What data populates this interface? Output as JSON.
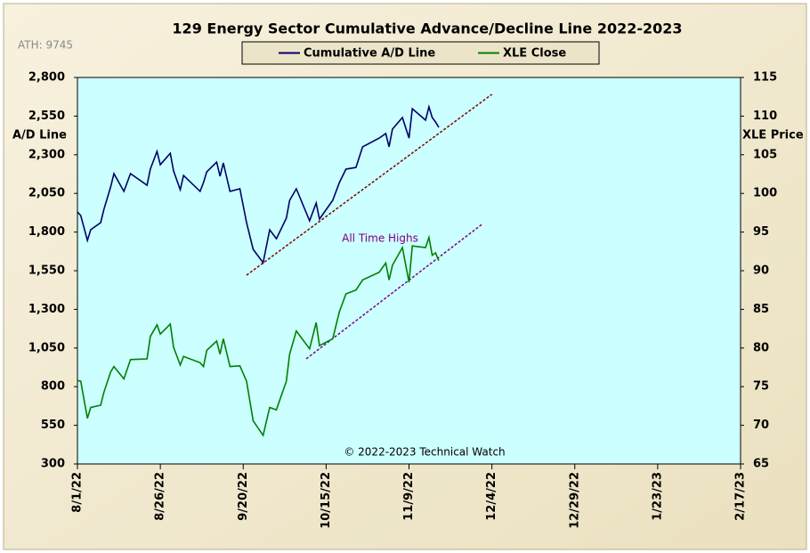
{
  "chart_data": {
    "type": "line",
    "title": "129 Energy Sector Cumulative Advance/Decline Line 2022-2023",
    "ylabel": "A/D Line",
    "y2label": "XLE Price",
    "ath_note": "ATH: 9745",
    "annotation": "All Time  Highs",
    "credit": "© 2022-2023  Technical Watch",
    "x": [
      "2022-08-01",
      "2022-08-02",
      "2022-08-04",
      "2022-08-05",
      "2022-08-08",
      "2022-08-09",
      "2022-08-11",
      "2022-08-12",
      "2022-08-15",
      "2022-08-17",
      "2022-08-22",
      "2022-08-23",
      "2022-08-25",
      "2022-08-26",
      "2022-08-29",
      "2022-08-30",
      "2022-09-01",
      "2022-09-02",
      "2022-09-07",
      "2022-09-08",
      "2022-09-09",
      "2022-09-12",
      "2022-09-13",
      "2022-09-14",
      "2022-09-16",
      "2022-09-19",
      "2022-09-21",
      "2022-09-23",
      "2022-09-26",
      "2022-09-28",
      "2022-09-30",
      "2022-10-03",
      "2022-10-04",
      "2022-10-06",
      "2022-10-10",
      "2022-10-12",
      "2022-10-13",
      "2022-10-17",
      "2022-10-19",
      "2022-10-21",
      "2022-10-24",
      "2022-10-26",
      "2022-10-31",
      "2022-11-02",
      "2022-11-03",
      "2022-11-04",
      "2022-11-07",
      "2022-11-09",
      "2022-11-10",
      "2022-11-14",
      "2022-11-15",
      "2022-11-16",
      "2022-11-17",
      "2022-11-18"
    ],
    "series": [
      {
        "name": "Cumulative A/D Line",
        "color": "#000066",
        "axis": "y",
        "values": [
          1930,
          1907,
          1746,
          1815,
          1861,
          1948,
          2092,
          2178,
          2063,
          2178,
          2103,
          2207,
          2322,
          2236,
          2310,
          2195,
          2074,
          2166,
          2063,
          2120,
          2190,
          2253,
          2161,
          2247,
          2063,
          2080,
          1861,
          1688,
          1602,
          1815,
          1757,
          1890,
          2005,
          2080,
          1873,
          1988,
          1884,
          2005,
          2120,
          2207,
          2218,
          2351,
          2408,
          2437,
          2351,
          2466,
          2541,
          2408,
          2598,
          2524,
          2610,
          2541,
          2512,
          2477
        ]
      },
      {
        "name": "XLE Close",
        "color": "#008000",
        "axis": "y2",
        "values": [
          75.8,
          75.7,
          70.9,
          72.3,
          72.6,
          74.3,
          76.9,
          77.6,
          76,
          78.5,
          78.6,
          81.5,
          83,
          81.8,
          83.1,
          80.1,
          77.8,
          78.9,
          78.1,
          77.6,
          79.7,
          80.9,
          79.2,
          81.2,
          77.6,
          77.7,
          75.7,
          70.6,
          68.7,
          72.3,
          72,
          75.7,
          79.2,
          82.2,
          79.9,
          83.3,
          80.3,
          81.2,
          84.7,
          87,
          87.5,
          88.8,
          89.8,
          91,
          88.8,
          90.7,
          93,
          88.5,
          93.2,
          93,
          94.3,
          92,
          92.3,
          91.3
        ]
      }
    ],
    "trendlines": [
      {
        "axis": "y",
        "color": "#800000",
        "x": [
          "2022-09-21",
          "2022-12-04"
        ],
        "values": [
          1521,
          2691
        ]
      },
      {
        "axis": "y2",
        "color": "#800080",
        "x": [
          "2022-10-09",
          "2022-12-01"
        ],
        "values": [
          78.6,
          96
        ]
      }
    ],
    "xlim": [
      "2022-08-01",
      "2023-02-17"
    ],
    "xticks": [
      {
        "value": "2022-08-01",
        "label": "8/1/22"
      },
      {
        "value": "2022-08-26",
        "label": "8/26/22"
      },
      {
        "value": "2022-09-20",
        "label": "9/20/22"
      },
      {
        "value": "2022-10-15",
        "label": "10/15/22"
      },
      {
        "value": "2022-11-09",
        "label": "11/9/22"
      },
      {
        "value": "2022-12-04",
        "label": "12/4/22"
      },
      {
        "value": "2022-12-29",
        "label": "12/29/22"
      },
      {
        "value": "2023-01-23",
        "label": "1/23/23"
      },
      {
        "value": "2023-02-17",
        "label": "2/17/23"
      }
    ],
    "ylim": [
      300,
      2800
    ],
    "yticks": [
      300,
      550,
      800,
      {
        "value": 1050,
        "label": "1,050"
      },
      {
        "value": 1300,
        "label": "1,300"
      },
      {
        "value": 1550,
        "label": "1,550"
      },
      {
        "value": 1800,
        "label": "1,800"
      },
      {
        "value": 2050,
        "label": "2,050"
      },
      {
        "value": 2300,
        "label": "2,300"
      },
      {
        "value": 2550,
        "label": "2,550"
      },
      {
        "value": 2800,
        "label": "2,800"
      }
    ],
    "y2lim": [
      65,
      115
    ],
    "y2ticks": [
      65,
      70,
      75,
      80,
      85,
      90,
      95,
      100,
      105,
      110,
      115
    ],
    "plot_color": "#ccffff",
    "grid": false
  }
}
